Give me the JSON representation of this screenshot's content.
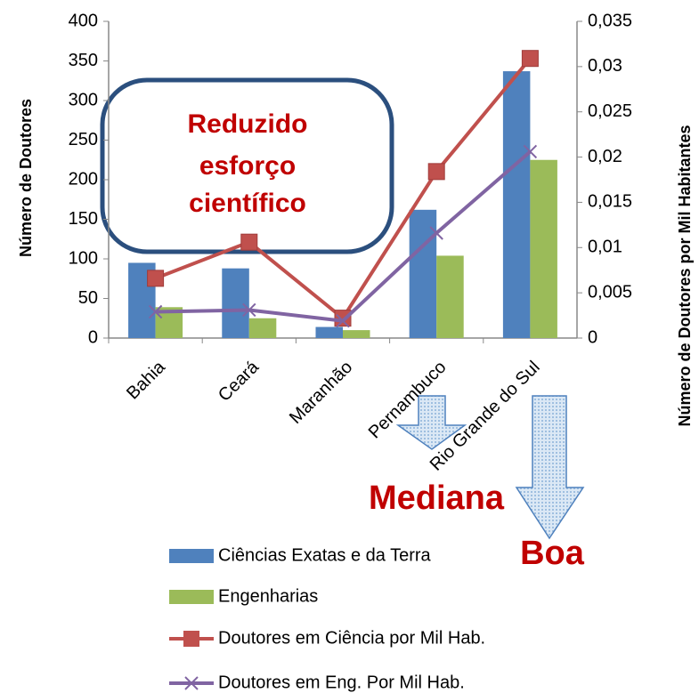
{
  "chart_data": {
    "type": "bar",
    "categories": [
      "Bahia",
      "Ceará",
      "Maranhão",
      "Pernambuco",
      "Rio Grande do Sul"
    ],
    "series": [
      {
        "name": "Ciências Exatas e da Terra",
        "color": "#4f81bd",
        "values": [
          95,
          88,
          14,
          162,
          337
        ]
      },
      {
        "name": "Engenharias",
        "color": "#9bbb59",
        "values": [
          39,
          25,
          10,
          104,
          225
        ]
      },
      {
        "name": "Doutores em Ciência por Mil Hab.",
        "color": "#c0504d",
        "axis": "y2",
        "type": "line",
        "marker": "square",
        "values": [
          0.0066,
          0.0106,
          0.0022,
          0.0184,
          0.0309
        ]
      },
      {
        "name": "Doutores em Eng. Por Mil Hab.",
        "color": "#8064a2",
        "axis": "y2",
        "type": "line",
        "marker": "x",
        "values": [
          0.0029,
          0.0031,
          0.0019,
          0.0116,
          0.0206
        ]
      }
    ],
    "ylabel": "Número de Doutores",
    "y2label": "Número de Doutores por Mil Habitantes",
    "ylim": [
      0,
      400
    ],
    "yticks": [
      0,
      50,
      100,
      150,
      200,
      250,
      300,
      350,
      400
    ],
    "y2lim": [
      0,
      0.035
    ],
    "y2ticks": [
      0,
      {
        "value": 0.005,
        "label": "0,005"
      },
      {
        "value": 0.01,
        "label": "0,01"
      },
      {
        "value": 0.015,
        "label": "0,015"
      },
      {
        "value": 0.02,
        "label": "0,02"
      },
      {
        "value": 0.025,
        "label": "0,025"
      },
      {
        "value": 0.03,
        "label": "0,03"
      },
      {
        "value": 0.035,
        "label": "0,035"
      }
    ],
    "box_text": [
      "Reduzido",
      "esforço",
      "científico"
    ],
    "annotations": [
      "Mediana",
      "Boa"
    ]
  }
}
